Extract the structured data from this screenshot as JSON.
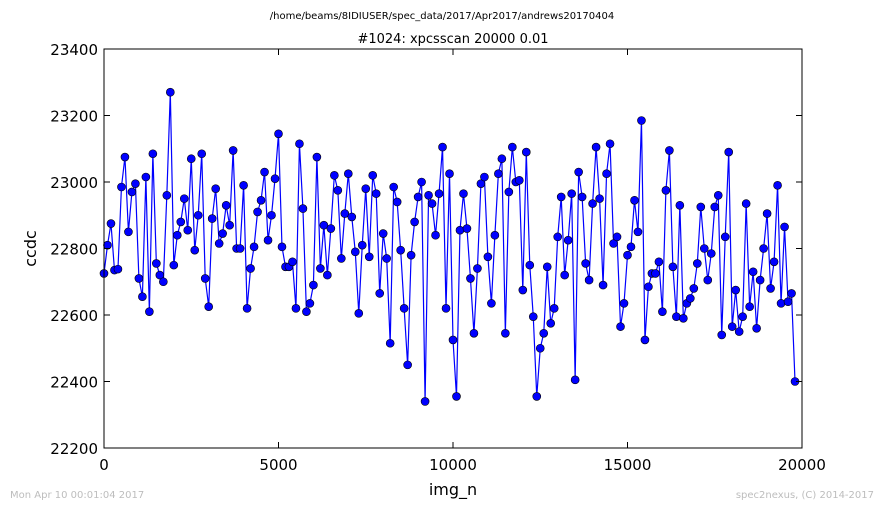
{
  "footer": {
    "left": "Mon Apr 10 00:01:04 2017",
    "right": "spec2nexus, (C) 2014-2017"
  },
  "colors": {
    "series": "#0000ff",
    "axis": "#000000",
    "footer": "#bdbdbd"
  },
  "chart_data": {
    "type": "line",
    "suptitle": "/home/beams/8IDIUSER/spec_data/2017/Apr2017/andrews20170404",
    "title": "#1024: xpcsscan 20000 0.01",
    "xlabel": "img_n",
    "ylabel": "ccdc",
    "xlim": [
      0,
      20000
    ],
    "ylim": [
      22200,
      23400
    ],
    "xticks": [
      0,
      5000,
      10000,
      15000,
      20000
    ],
    "yticks": [
      22200,
      22400,
      22600,
      22800,
      23000,
      23200,
      23400
    ],
    "xtick_labels": [
      "0",
      "5000",
      "10000",
      "15000",
      "20000"
    ],
    "ytick_labels": [
      "22200",
      "22400",
      "22600",
      "22800",
      "23000",
      "23200",
      "23400"
    ],
    "grid": false,
    "marker": "circle",
    "x_step": 100,
    "series": [
      {
        "values": [
          22725,
          22810,
          22875,
          22735,
          22738,
          22985,
          23075,
          22850,
          22970,
          22995,
          22710,
          22655,
          23015,
          22610,
          23085,
          22755,
          22720,
          22700,
          22960,
          23270,
          22750,
          22840,
          22880,
          22950,
          22855,
          23070,
          22795,
          22900,
          23085,
          22710,
          22625,
          22890,
          22980,
          22815,
          22845,
          22930,
          22870,
          23095,
          22800,
          22800,
          22990,
          22620,
          22740,
          22805,
          22910,
          22945,
          23030,
          22825,
          22900,
          23010,
          23145,
          22805,
          22745,
          22745,
          22760,
          22620,
          23115,
          22920,
          22610,
          22635,
          22690,
          23075,
          22740,
          22870,
          22720,
          22860,
          23020,
          22975,
          22770,
          22905,
          23025,
          22895,
          22790,
          22605,
          22810,
          22980,
          22775,
          23020,
          22965,
          22665,
          22845,
          22770,
          22515,
          22985,
          22940,
          22795,
          22620,
          22450,
          22780,
          22880,
          22955,
          23000,
          22340,
          22960,
          22935,
          22840,
          22965,
          23105,
          22620,
          23025,
          22525,
          22355,
          22855,
          22965,
          22860,
          22710,
          22545,
          22740,
          22995,
          23015,
          22775,
          22635,
          22840,
          23025,
          23070,
          22545,
          22970,
          23105,
          23000,
          23005,
          22675,
          23090,
          22750,
          22595,
          22355,
          22500,
          22545,
          22745,
          22575,
          22620,
          22835,
          22955,
          22720,
          22825,
          22965,
          22405,
          23030,
          22955,
          22755,
          22705,
          22935,
          23105,
          22950,
          22690,
          23025,
          23115,
          22815,
          22835,
          22565,
          22635,
          22780,
          22805,
          22945,
          22850,
          23185,
          22525,
          22685,
          22725,
          22725,
          22760,
          22610,
          22975,
          23095,
          22745,
          22595,
          22930,
          22590,
          22635,
          22650,
          22680,
          22755,
          22925,
          22800,
          22705,
          22785,
          22925,
          22960,
          22540,
          22835,
          23090,
          22565,
          22675,
          22550,
          22595,
          22935,
          22625,
          22730,
          22560,
          22705,
          22800,
          22905,
          22680,
          22760,
          22990,
          22635,
          22865,
          22640,
          22665,
          22400
        ]
      }
    ]
  }
}
